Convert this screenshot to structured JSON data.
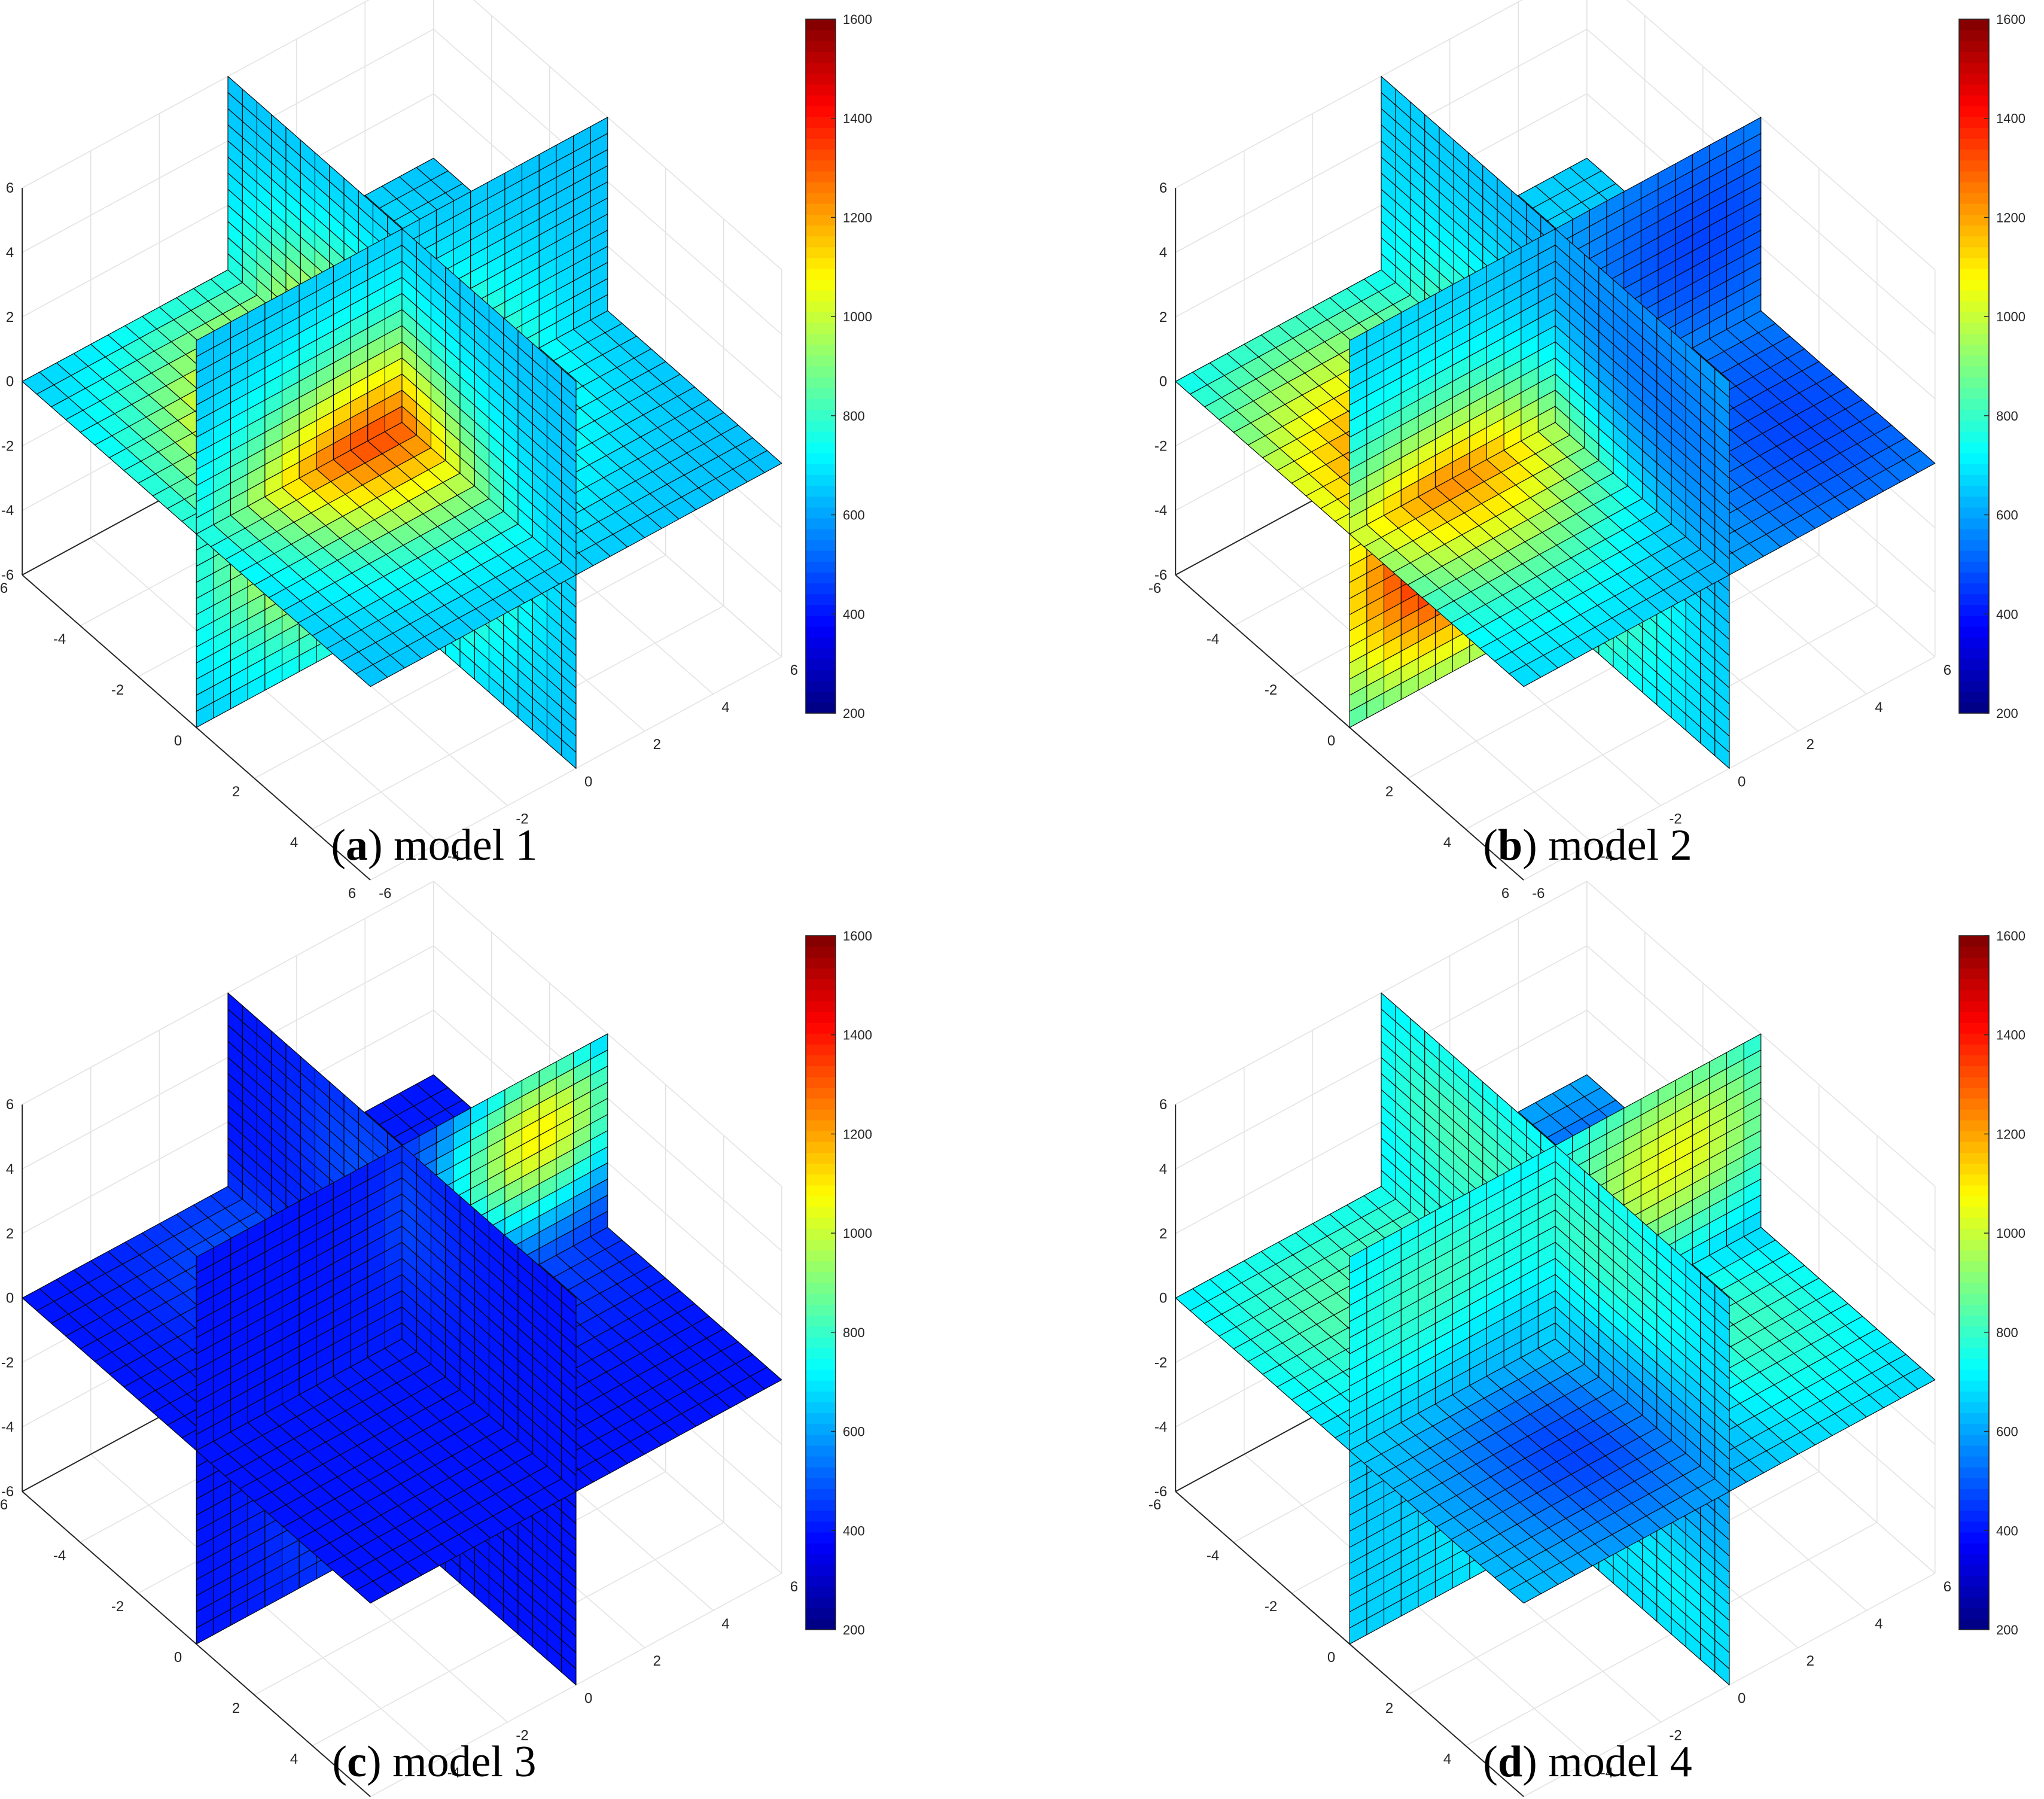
{
  "colors": {
    "colormap": "jet",
    "cell_edge": "#000000",
    "grid": "#e3e3e3",
    "axis": "#262626",
    "background": "#ffffff"
  },
  "chart_data": [
    {
      "type": "slice3d",
      "caption": {
        "letter": "a",
        "text": "model 1"
      },
      "x_ticks": [
        "-6",
        "-4",
        "-2",
        "0",
        "2",
        "4",
        "6"
      ],
      "y_ticks": [
        "-6",
        "-4",
        "-2",
        "0",
        "2",
        "4",
        "6"
      ],
      "z_ticks": [
        "-6",
        "-4",
        "-2",
        "0",
        "2",
        "4",
        "6"
      ],
      "xlim": [
        -6,
        6
      ],
      "ylim": [
        -6,
        6
      ],
      "zlim": [
        -6,
        6
      ],
      "slice_planes": [
        "x=0",
        "y=0",
        "z=0"
      ],
      "grid": true,
      "colorbar": {
        "range": [
          200,
          1600
        ],
        "ticks": [
          "1600",
          "1400",
          "1200",
          "1000",
          "800",
          "600",
          "400",
          "200"
        ]
      },
      "field": {
        "background": 640,
        "anomalies": [
          {
            "center": [
              -1,
              -1,
              -1
            ],
            "peak": 1450,
            "sigma": 2.6
          }
        ]
      }
    },
    {
      "type": "slice3d",
      "caption": {
        "letter": "b",
        "text": "model 2"
      },
      "x_ticks": [
        "-6",
        "-4",
        "-2",
        "0",
        "2",
        "4",
        "6"
      ],
      "y_ticks": [
        "-6",
        "-4",
        "-2",
        "0",
        "2",
        "4",
        "6"
      ],
      "z_ticks": [
        "-6",
        "-4",
        "-2",
        "0",
        "2",
        "4",
        "6"
      ],
      "xlim": [
        -6,
        6
      ],
      "ylim": [
        -6,
        6
      ],
      "zlim": [
        -6,
        6
      ],
      "slice_planes": [
        "x=0",
        "y=0",
        "z=0"
      ],
      "grid": true,
      "colorbar": {
        "range": [
          200,
          1600
        ],
        "ticks": [
          "1600",
          "1400",
          "1200",
          "1000",
          "800",
          "600",
          "400",
          "200"
        ]
      },
      "field": {
        "background": 660,
        "anomalies": [
          {
            "center": [
              -1,
              -3,
              -2
            ],
            "peak": 1480,
            "sigma": 2.8
          },
          {
            "center": [
              3,
              4,
              3
            ],
            "peak": 350,
            "sigma": 3.2
          }
        ]
      }
    },
    {
      "type": "slice3d",
      "caption": {
        "letter": "c",
        "text": "model 3"
      },
      "x_ticks": [
        "-6",
        "-4",
        "-2",
        "0",
        "2",
        "4",
        "6"
      ],
      "y_ticks": [
        "-6",
        "-4",
        "-2",
        "0",
        "2",
        "4",
        "6"
      ],
      "z_ticks": [
        "-6",
        "-4",
        "-2",
        "0",
        "2",
        "4",
        "6"
      ],
      "xlim": [
        -6,
        6
      ],
      "ylim": [
        -6,
        6
      ],
      "zlim": [
        -6,
        6
      ],
      "slice_planes": [
        "x=0",
        "y=0",
        "z=0"
      ],
      "grid": true,
      "colorbar": {
        "range": [
          200,
          1600
        ],
        "ticks": [
          "1600",
          "1400",
          "1200",
          "1000",
          "800",
          "600",
          "400",
          "200"
        ]
      },
      "field": {
        "background": 400,
        "anomalies": [
          {
            "center": [
              -4,
              -1,
              -4
            ],
            "peak": 1180,
            "sigma": 1.9
          },
          {
            "center": [
              -1,
              4,
              4
            ],
            "peak": 1180,
            "sigma": 1.9
          }
        ]
      }
    },
    {
      "type": "slice3d",
      "caption": {
        "letter": "d",
        "text": "model 4"
      },
      "x_ticks": [
        "-6",
        "-4",
        "-2",
        "0",
        "2",
        "4",
        "6"
      ],
      "y_ticks": [
        "-6",
        "-4",
        "-2",
        "0",
        "2",
        "4",
        "6"
      ],
      "z_ticks": [
        "-6",
        "-4",
        "-2",
        "0",
        "2",
        "4",
        "6"
      ],
      "xlim": [
        -6,
        6
      ],
      "ylim": [
        -6,
        6
      ],
      "zlim": [
        -6,
        6
      ],
      "slice_planes": [
        "x=0",
        "y=0",
        "z=0"
      ],
      "grid": true,
      "colorbar": {
        "range": [
          200,
          1600
        ],
        "ticks": [
          "1600",
          "1400",
          "1200",
          "1000",
          "800",
          "600",
          "400",
          "200"
        ]
      },
      "field": {
        "background": 660,
        "anomalies": [
          {
            "center": [
              -3.5,
              -3.5,
              3.5
            ],
            "peak": 1300,
            "sigma": 2.1
          },
          {
            "center": [
              -3.5,
              1,
              -3.5
            ],
            "peak": 1300,
            "sigma": 2.1
          },
          {
            "center": [
              2,
              3.5,
              3.5
            ],
            "peak": 1300,
            "sigma": 2.1
          },
          {
            "center": [
              4,
              -3,
              -4
            ],
            "peak": 1150,
            "sigma": 1.5
          },
          {
            "center": [
              -3,
              4,
              0
            ],
            "peak": 420,
            "sigma": 2.0
          },
          {
            "center": [
              3,
              -2,
              0
            ],
            "peak": 450,
            "sigma": 2.2
          }
        ]
      }
    }
  ]
}
